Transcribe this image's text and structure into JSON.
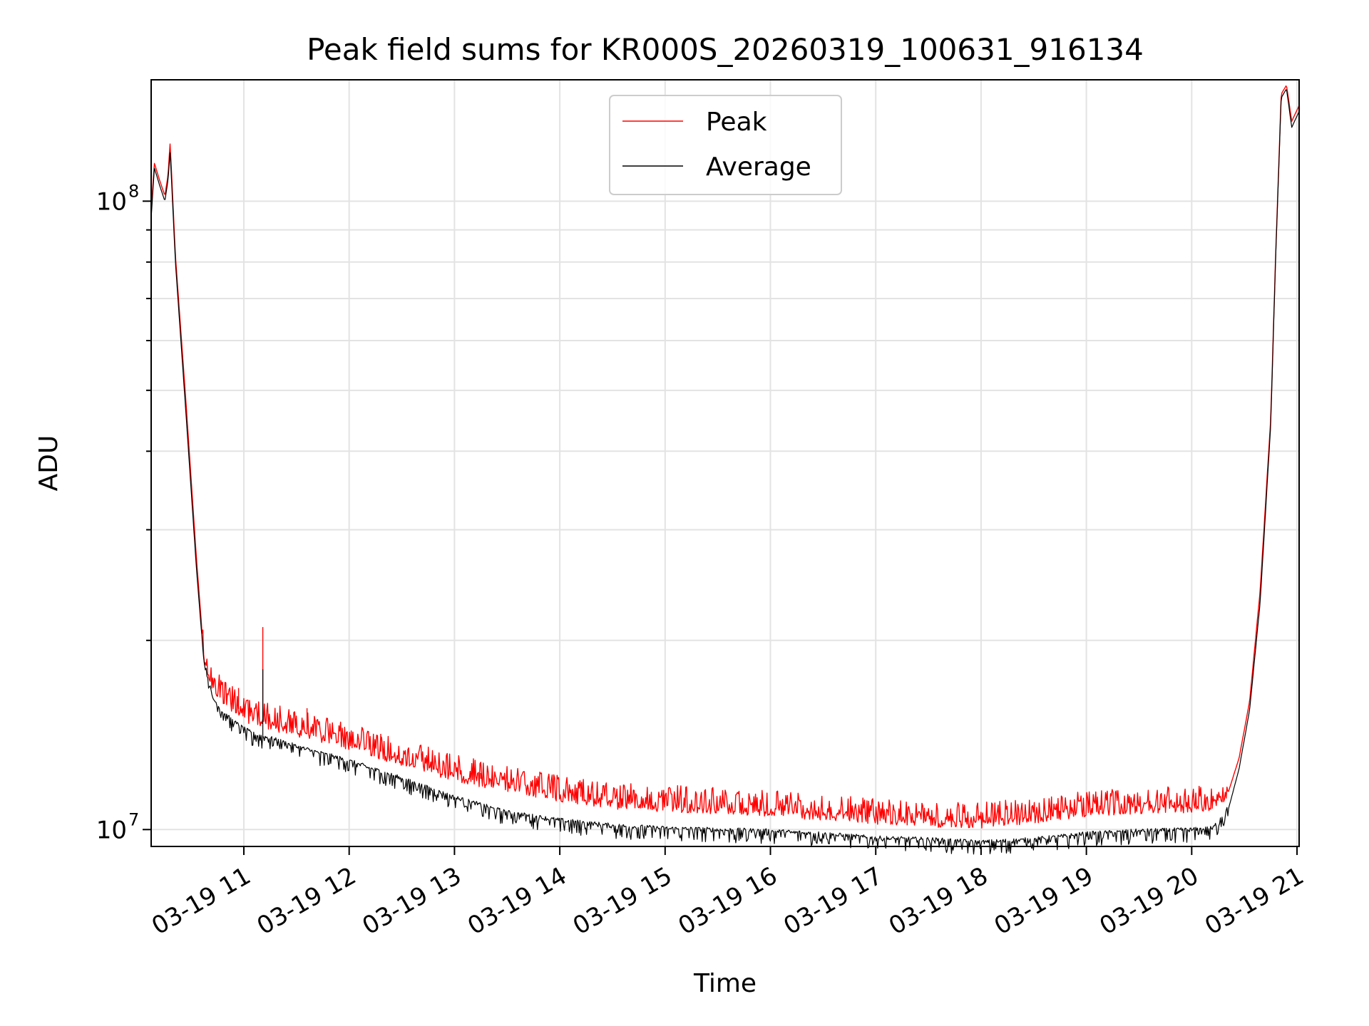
{
  "chart_data": {
    "type": "line",
    "title": "Peak field sums for KR000S_20260319_100631_916134",
    "xlabel": "Time",
    "ylabel": "ADU",
    "yscale": "log",
    "ylim": [
      9400000,
      156000000
    ],
    "xlim": [
      10.12,
      21.02
    ],
    "x_units": "hour of day on 03-19",
    "grid": true,
    "legend_position": "top-center",
    "x_ticks": [
      {
        "value": 11,
        "label": "03-19 11"
      },
      {
        "value": 12,
        "label": "03-19 12"
      },
      {
        "value": 13,
        "label": "03-19 13"
      },
      {
        "value": 14,
        "label": "03-19 14"
      },
      {
        "value": 15,
        "label": "03-19 15"
      },
      {
        "value": 16,
        "label": "03-19 16"
      },
      {
        "value": 17,
        "label": "03-19 17"
      },
      {
        "value": 18,
        "label": "03-19 18"
      },
      {
        "value": 19,
        "label": "03-19 19"
      },
      {
        "value": 20,
        "label": "03-19 20"
      },
      {
        "value": 21,
        "label": "03-19 21"
      }
    ],
    "y_ticks": [
      {
        "value": 10000000,
        "base": "10",
        "exp": "7"
      },
      {
        "value": 100000000,
        "base": "10",
        "exp": "8"
      }
    ],
    "series": [
      {
        "name": "Peak",
        "color": "#ff0000",
        "x": [
          10.12,
          10.15,
          10.2,
          10.25,
          10.28,
          10.3,
          10.35,
          10.45,
          10.55,
          10.62,
          10.7,
          10.8,
          10.9,
          11.0,
          11.1,
          11.2,
          11.5,
          12.0,
          12.5,
          13.0,
          13.5,
          14.0,
          14.5,
          15.0,
          15.5,
          16.0,
          16.5,
          17.0,
          17.5,
          18.0,
          18.5,
          19.0,
          19.5,
          20.0,
          20.2,
          20.35,
          20.45,
          20.55,
          20.65,
          20.75,
          20.8,
          20.85,
          20.9,
          20.95,
          21.02
        ],
        "y": [
          96000000,
          115000000,
          108000000,
          102000000,
          110000000,
          124000000,
          82000000,
          48000000,
          27000000,
          19000000,
          17000000,
          16300000,
          15800000,
          15300000,
          15000000,
          14900000,
          14500000,
          13800000,
          13000000,
          12300000,
          11800000,
          11400000,
          11100000,
          11000000,
          10900000,
          10800000,
          10600000,
          10500000,
          10400000,
          10350000,
          10500000,
          10800000,
          10900000,
          10950000,
          11000000,
          11500000,
          13000000,
          16000000,
          24000000,
          45000000,
          85000000,
          148000000,
          153000000,
          134000000,
          142000000
        ],
        "spikes": [
          {
            "x": 11.18,
            "y": 21000000
          },
          {
            "x": 10.95,
            "y": 16800000
          },
          {
            "x": 11.6,
            "y": 15600000
          },
          {
            "x": 12.3,
            "y": 14200000
          },
          {
            "x": 13.25,
            "y": 12300000
          },
          {
            "x": 14.2,
            "y": 11800000
          }
        ]
      },
      {
        "name": "Average",
        "color": "#000000",
        "x": [
          10.12,
          10.15,
          10.2,
          10.25,
          10.28,
          10.3,
          10.35,
          10.45,
          10.55,
          10.62,
          10.7,
          10.8,
          10.9,
          11.0,
          11.1,
          11.2,
          11.5,
          12.0,
          12.5,
          13.0,
          13.5,
          14.0,
          14.5,
          15.0,
          15.5,
          16.0,
          16.5,
          17.0,
          17.5,
          18.0,
          18.5,
          19.0,
          19.5,
          20.0,
          20.2,
          20.35,
          20.45,
          20.55,
          20.65,
          20.75,
          20.8,
          20.85,
          20.9,
          20.95,
          21.02
        ],
        "y": [
          94000000,
          113000000,
          106000000,
          100000000,
          108000000,
          120000000,
          80000000,
          46000000,
          26000000,
          18500000,
          16200000,
          15300000,
          14800000,
          14400000,
          14100000,
          14000000,
          13500000,
          12800000,
          12000000,
          11200000,
          10600000,
          10300000,
          10100000,
          10000000,
          9950000,
          9900000,
          9800000,
          9650000,
          9600000,
          9500000,
          9600000,
          9800000,
          9900000,
          9950000,
          10000000,
          10800000,
          12500000,
          15500000,
          23000000,
          44000000,
          84000000,
          146000000,
          151000000,
          131000000,
          139000000
        ],
        "spikes": [
          {
            "x": 11.18,
            "y": 18000000
          }
        ]
      }
    ]
  }
}
